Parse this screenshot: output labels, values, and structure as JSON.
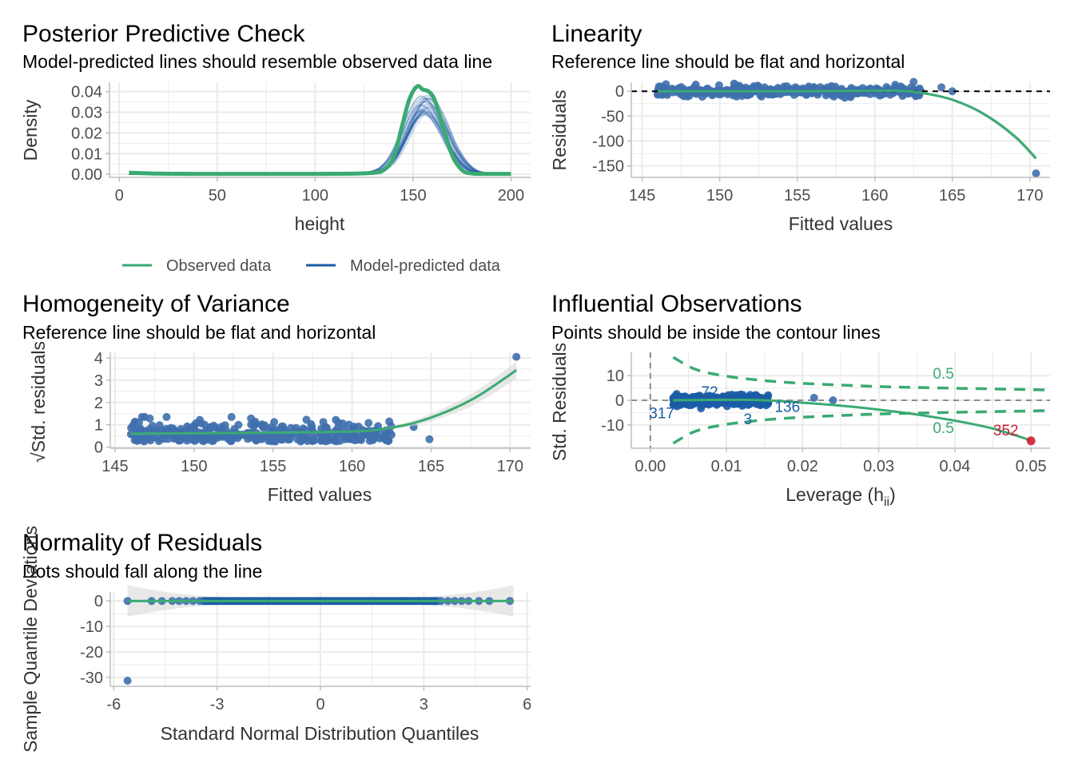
{
  "colors": {
    "green": "#3aaa72",
    "blue": "#1b5ba6",
    "point": "#3f6fad",
    "red": "#cd2035",
    "grid": "#ebebeb",
    "band": "#d9d9d9"
  },
  "chart_data": [
    {
      "id": "ppc",
      "type": "line",
      "title": "Posterior Predictive Check",
      "subtitle": "Model-predicted lines should resemble observed data line",
      "xlabel": "height",
      "ylabel": "Density",
      "xlim": [
        -5,
        210
      ],
      "ylim": [
        -0.0015,
        0.0445
      ],
      "xticks": [
        0,
        50,
        100,
        150,
        200
      ],
      "xtick_labels": [
        "0",
        "50",
        "100",
        "150",
        "200"
      ],
      "yticks": [
        0,
        0.01,
        0.02,
        0.03,
        0.04
      ],
      "ytick_labels": [
        "0.00",
        "0.01",
        "0.02",
        "0.03",
        "0.04"
      ],
      "legend_position": "bottom",
      "legend": [
        "Observed data",
        "Model-predicted data"
      ],
      "series": [
        {
          "name": "Observed data",
          "x": [
            5,
            20,
            40,
            60,
            80,
            100,
            120,
            130,
            135,
            140,
            144,
            148,
            152,
            155,
            158,
            161,
            165,
            170,
            175,
            180,
            190,
            200
          ],
          "y": [
            0.0008,
            0.0003,
            0.0002,
            0.0002,
            0.0002,
            0.0002,
            0.0003,
            0.0008,
            0.002,
            0.008,
            0.022,
            0.036,
            0.0425,
            0.041,
            0.04,
            0.036,
            0.024,
            0.009,
            0.002,
            0.0004,
            0.0002,
            0.0002
          ]
        },
        {
          "name": "Model-predicted data",
          "x": [
            5,
            40,
            80,
            110,
            125,
            130,
            135,
            140,
            145,
            150,
            155,
            160,
            165,
            170,
            175,
            180,
            185,
            190,
            200
          ],
          "y": [
            0,
            0,
            0,
            0,
            0.0004,
            0.0012,
            0.003,
            0.008,
            0.017,
            0.027,
            0.033,
            0.031,
            0.023,
            0.013,
            0.006,
            0.002,
            0.0006,
            0.0001,
            0
          ]
        }
      ]
    },
    {
      "id": "linearity",
      "type": "scatter",
      "title": "Linearity",
      "subtitle": "Reference line should be flat and horizontal",
      "xlabel": "Fitted values",
      "ylabel": "Residuals",
      "xlim": [
        144.3,
        171.3
      ],
      "ylim": [
        -173,
        18
      ],
      "xticks": [
        145,
        150,
        155,
        160,
        165,
        170
      ],
      "xtick_labels": [
        "145",
        "150",
        "155",
        "160",
        "165",
        "170"
      ],
      "yticks": [
        0,
        -50,
        -100,
        -150
      ],
      "ytick_labels": [
        "0",
        "-50",
        "-100",
        "-150"
      ],
      "reference_line": 0,
      "outliers": [
        {
          "x": 164.3,
          "y": 8
        },
        {
          "x": 165,
          "y": 0
        },
        {
          "x": 170.4,
          "y": -165
        }
      ],
      "smooth": {
        "x": [
          146,
          150,
          155,
          160,
          161.5,
          163,
          165,
          167,
          169,
          170.4
        ],
        "y": [
          0,
          0,
          0,
          1,
          1,
          -3,
          -17,
          -45,
          -90,
          -135
        ]
      }
    },
    {
      "id": "homogeneity",
      "type": "scatter",
      "title": "Homogeneity of Variance",
      "subtitle": "Reference line should be flat and horizontal",
      "xlabel": "Fitted values",
      "ylabel": "Std. residuals",
      "ylabel_prefix": "√",
      "xlim": [
        144.7,
        171.3
      ],
      "ylim": [
        -0.05,
        4.25
      ],
      "xticks": [
        145,
        150,
        155,
        160,
        165,
        170
      ],
      "xtick_labels": [
        "145",
        "150",
        "155",
        "160",
        "165",
        "170"
      ],
      "yticks": [
        0,
        1,
        2,
        3,
        4
      ],
      "ytick_labels": [
        "0",
        "1",
        "2",
        "3",
        "4"
      ],
      "outliers": [
        {
          "x": 163.9,
          "y": 0.9
        },
        {
          "x": 164.9,
          "y": 0.35
        },
        {
          "x": 170.4,
          "y": 4.05
        }
      ],
      "smooth": {
        "x": [
          146,
          150,
          155,
          160,
          162,
          164,
          166,
          168,
          170.4
        ],
        "y": [
          0.6,
          0.62,
          0.65,
          0.7,
          0.82,
          1.1,
          1.6,
          2.3,
          3.45
        ]
      }
    },
    {
      "id": "influential",
      "type": "scatter",
      "title": "Influential Observations",
      "subtitle": "Points should be inside the contour lines",
      "xlabel": "Leverage (h",
      "xlabel_sub": "ii",
      "xlabel_suffix": ")",
      "ylabel": "Std. Residuals",
      "xlim": [
        -0.0025,
        0.0525
      ],
      "ylim": [
        -19.5,
        19.5
      ],
      "xticks": [
        0,
        0.01,
        0.02,
        0.03,
        0.04,
        0.05
      ],
      "xtick_labels": [
        "0.00",
        "0.01",
        "0.02",
        "0.03",
        "0.04",
        "0.05"
      ],
      "yticks": [
        10,
        0,
        -10
      ],
      "ytick_labels": [
        "10",
        "0",
        "-10"
      ],
      "contour_label": "0.5",
      "contour": {
        "x": [
          0.003,
          0.006,
          0.01,
          0.015,
          0.02,
          0.03,
          0.04,
          0.0525
        ],
        "y": [
          17.5,
          12.5,
          9.8,
          8.0,
          6.9,
          5.6,
          4.9,
          4.2
        ]
      },
      "point_labels": [
        {
          "text": "72",
          "x": 0.0078,
          "y": 3.5
        },
        {
          "text": "317",
          "x": 0.0015,
          "y": -5
        },
        {
          "text": "136",
          "x": 0.018,
          "y": -2.5
        },
        {
          "text": "3",
          "x": 0.0128,
          "y": -7.5
        },
        {
          "text": "352",
          "x": 0.0467,
          "y": -12
        }
      ],
      "highlight_point": {
        "x": 0.05,
        "y": -16.5
      },
      "outliers": [
        {
          "x": 0.0215,
          "y": 1
        },
        {
          "x": 0.024,
          "y": 0
        }
      ],
      "smooth": {
        "x": [
          0.003,
          0.01,
          0.015,
          0.02,
          0.025,
          0.03,
          0.035,
          0.04,
          0.045,
          0.05
        ],
        "y": [
          0,
          0.2,
          0,
          -1,
          -2.2,
          -3.8,
          -5.8,
          -8.3,
          -11.5,
          -16.3
        ]
      }
    },
    {
      "id": "normality",
      "type": "scatter",
      "title": "Normality of Residuals",
      "subtitle": "Dots should fall along the line",
      "xlabel": "Standard Normal Distribution Quantiles",
      "ylabel": "Sample Quantile Deviations",
      "xlim": [
        -6.1,
        6.1
      ],
      "ylim": [
        -33.5,
        3.5
      ],
      "xticks": [
        -6,
        -3,
        0,
        3,
        6
      ],
      "xtick_labels": [
        "-6",
        "-3",
        "0",
        "3",
        "6"
      ],
      "yticks": [
        0,
        -10,
        -20,
        -30
      ],
      "ytick_labels": [
        "0",
        "-10",
        "-20",
        "-30"
      ],
      "points_x": [
        -5.6,
        -4.9,
        -4.6,
        -4.3,
        -4.1,
        -3.9,
        -3.7,
        -3.5,
        3.5,
        3.7,
        3.9,
        4.1,
        4.3,
        4.6,
        4.9,
        5.5
      ],
      "outliers": [
        {
          "x": -5.6,
          "y": -31.3
        }
      ],
      "smooth": {
        "x": [
          -5.6,
          5.6
        ],
        "y": [
          0,
          0
        ]
      }
    }
  ]
}
